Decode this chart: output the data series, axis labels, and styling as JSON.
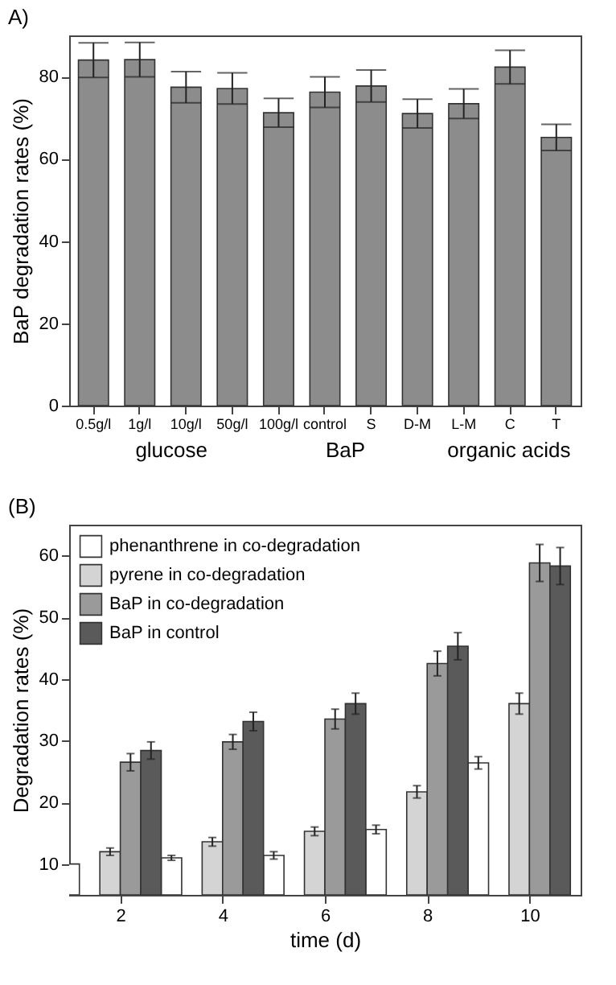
{
  "chart_data": [
    {
      "type": "bar",
      "title": "A)",
      "ylabel": "BaP degradation rates (%)",
      "categories": [
        "0.5g/l",
        "1g/l",
        "10g/l",
        "50g/l",
        "100g/l",
        "control",
        "S",
        "D-M",
        "L-M",
        "C",
        "T"
      ],
      "values": [
        84.0,
        84.1,
        77.4,
        77.1,
        71.2,
        76.2,
        77.7,
        71.0,
        73.4,
        82.3,
        65.2
      ],
      "errors": [
        4.2,
        4.2,
        3.8,
        3.8,
        3.5,
        3.7,
        3.9,
        3.5,
        3.6,
        4.1,
        3.2
      ],
      "color": "#8c8c8c",
      "ylim": [
        0,
        90
      ],
      "yticks": [
        0,
        20,
        40,
        60,
        80
      ],
      "annotations": [
        "glucose",
        "BaP",
        "organic acids"
      ],
      "grid": false
    },
    {
      "type": "bar",
      "title": "(B)",
      "xlabel": "time (d)",
      "ylabel": "Degradation rates (%)",
      "xlim": [
        1,
        11
      ],
      "xticks": [
        2,
        4,
        6,
        8,
        10
      ],
      "ylim": [
        5,
        65
      ],
      "yticks": [
        10,
        20,
        30,
        40,
        50,
        60
      ],
      "series": [
        {
          "name": "phenanthrene in co-degradation",
          "color": "#ffffff",
          "x": [
            1,
            3,
            5,
            7,
            9
          ],
          "values": [
            10.0,
            11.0,
            11.4,
            15.6,
            26.4
          ],
          "errors": [
            null,
            0.4,
            0.6,
            0.7,
            1.0
          ]
        },
        {
          "name": "pyrene in co-degradation",
          "color": "#d4d4d4",
          "x": [
            1.8,
            3.8,
            5.8,
            7.8,
            9.8
          ],
          "values": [
            12.0,
            13.6,
            15.3,
            21.7,
            36.0
          ],
          "errors": [
            0.6,
            0.7,
            0.7,
            1.0,
            1.7
          ]
        },
        {
          "name": "BaP in co-degradation",
          "color": "#9a9a9a",
          "x": [
            2.2,
            4.2,
            6.2,
            8.2,
            10.2
          ],
          "values": [
            26.5,
            29.8,
            33.5,
            42.5,
            58.8
          ],
          "errors": [
            1.4,
            1.2,
            1.6,
            2.0,
            3.0
          ]
        },
        {
          "name": "BaP in control",
          "color": "#5a5a5a",
          "x": [
            2.6,
            4.6,
            6.6,
            8.6,
            10.6
          ],
          "values": [
            28.4,
            33.1,
            36.0,
            45.3,
            58.3
          ],
          "errors": [
            1.4,
            1.5,
            1.7,
            2.2,
            3.0
          ]
        }
      ],
      "grid": false,
      "legend": "top left"
    }
  ]
}
